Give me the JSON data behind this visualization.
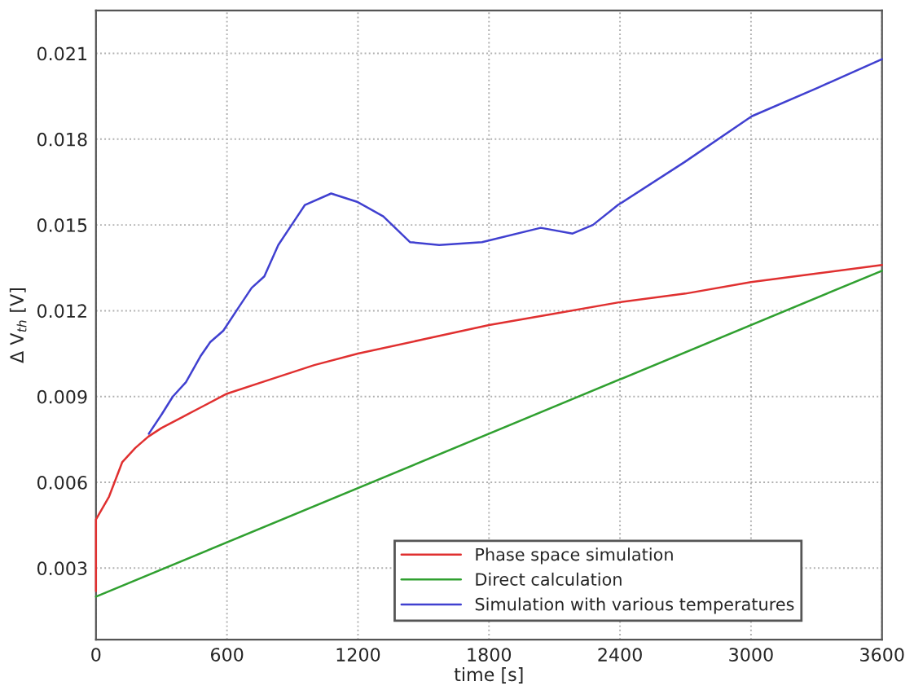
{
  "chart_data": {
    "type": "line",
    "xlabel": "time [s]",
    "ylabel": "Δ V$_{th}$ [V]",
    "xlim": [
      0,
      3600
    ],
    "xticks": [
      0,
      600,
      1200,
      1800,
      2400,
      3000,
      3600
    ],
    "ylim": [
      0.0005,
      0.0225
    ],
    "yticks": [
      {
        "value": 0.003,
        "label": "0.003"
      },
      {
        "value": 0.006,
        "label": "0.006"
      },
      {
        "value": 0.009,
        "label": "0.009"
      },
      {
        "value": 0.012,
        "label": "0.012"
      },
      {
        "value": 0.015,
        "label": "0.015"
      },
      {
        "value": 0.018,
        "label": "0.018"
      },
      {
        "value": 0.021,
        "label": "0.021"
      }
    ],
    "grid": true,
    "legend": "bottom right",
    "marker": "none",
    "line_style": "solid",
    "series": [
      {
        "name": "Phase space simulation",
        "color": "#e03030",
        "x": [
          0,
          0,
          60,
          120,
          180,
          240,
          300,
          400,
          500,
          600,
          800,
          1000,
          1200,
          1500,
          1800,
          2100,
          2400,
          2700,
          3000,
          3300,
          3600
        ],
        "values": [
          0.0022,
          0.0047,
          0.0055,
          0.0067,
          0.0072,
          0.0076,
          0.0079,
          0.0083,
          0.0087,
          0.0091,
          0.0096,
          0.0101,
          0.0105,
          0.011,
          0.0115,
          0.0119,
          0.0123,
          0.0126,
          0.013,
          0.0133,
          0.0136
        ]
      },
      {
        "name": "Direct calculation",
        "color": "#30a030",
        "x": [
          0,
          3600
        ],
        "values": [
          0.002,
          0.0134
        ]
      },
      {
        "name": "Simulation with various temperatures",
        "color": "#4040d0",
        "x": [
          242,
          303,
          352,
          412,
          478,
          523,
          583,
          652,
          713,
          771,
          835,
          896,
          957,
          1077,
          1199,
          1316,
          1438,
          1572,
          1768,
          2037,
          2183,
          2276,
          2391,
          2696,
          3003,
          3307,
          3600
        ],
        "values": [
          0.0077,
          0.0084,
          0.009,
          0.0095,
          0.0104,
          0.0109,
          0.0113,
          0.0121,
          0.0128,
          0.0132,
          0.0143,
          0.015,
          0.0157,
          0.0161,
          0.0158,
          0.0153,
          0.0144,
          0.0143,
          0.0144,
          0.0149,
          0.0147,
          0.015,
          0.0157,
          0.0172,
          0.0188,
          0.0198,
          0.0208
        ]
      }
    ]
  }
}
